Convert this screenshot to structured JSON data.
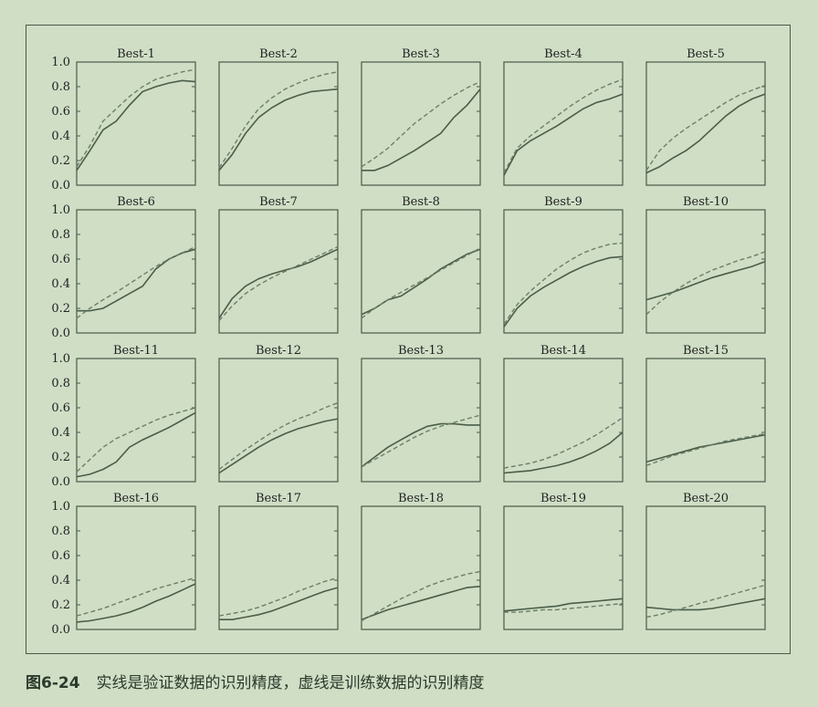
{
  "caption": {
    "figure_number": "图6-24",
    "text": "实线是验证数据的识别精度，虚线是训练数据的识别精度"
  },
  "colors": {
    "background": "#cfdec5",
    "axis": "#4a5a48",
    "solid_line": "#4b5d49",
    "dashed_line": "#6c7f68"
  },
  "chart_data": [
    {
      "type": "line",
      "title": "Best-1",
      "ylim": [
        0,
        1
      ],
      "yticks": [
        "0.0",
        "0.2",
        "0.4",
        "0.6",
        "0.8",
        "1.0"
      ],
      "series": [
        {
          "style": "solid",
          "values": [
            0.12,
            0.28,
            0.45,
            0.52,
            0.65,
            0.76,
            0.8,
            0.83,
            0.85,
            0.84
          ]
        },
        {
          "style": "dashed",
          "values": [
            0.15,
            0.32,
            0.52,
            0.62,
            0.72,
            0.8,
            0.86,
            0.89,
            0.92,
            0.94
          ]
        }
      ]
    },
    {
      "type": "line",
      "title": "Best-2",
      "ylim": [
        0,
        1
      ],
      "series": [
        {
          "style": "solid",
          "values": [
            0.12,
            0.25,
            0.42,
            0.55,
            0.63,
            0.69,
            0.73,
            0.76,
            0.77,
            0.78
          ]
        },
        {
          "style": "dashed",
          "values": [
            0.14,
            0.3,
            0.48,
            0.62,
            0.71,
            0.78,
            0.83,
            0.87,
            0.9,
            0.92
          ]
        }
      ]
    },
    {
      "type": "line",
      "title": "Best-3",
      "ylim": [
        0,
        1
      ],
      "series": [
        {
          "style": "solid",
          "values": [
            0.12,
            0.12,
            0.16,
            0.22,
            0.28,
            0.35,
            0.42,
            0.55,
            0.65,
            0.78
          ]
        },
        {
          "style": "dashed",
          "values": [
            0.15,
            0.22,
            0.3,
            0.4,
            0.5,
            0.58,
            0.66,
            0.73,
            0.79,
            0.84
          ]
        }
      ]
    },
    {
      "type": "line",
      "title": "Best-4",
      "ylim": [
        0,
        1
      ],
      "series": [
        {
          "style": "solid",
          "values": [
            0.08,
            0.28,
            0.36,
            0.42,
            0.48,
            0.55,
            0.62,
            0.67,
            0.7,
            0.74
          ]
        },
        {
          "style": "dashed",
          "values": [
            0.1,
            0.3,
            0.4,
            0.48,
            0.56,
            0.64,
            0.71,
            0.77,
            0.82,
            0.86
          ]
        }
      ]
    },
    {
      "type": "line",
      "title": "Best-5",
      "ylim": [
        0,
        1
      ],
      "series": [
        {
          "style": "solid",
          "values": [
            0.1,
            0.15,
            0.22,
            0.28,
            0.36,
            0.46,
            0.56,
            0.64,
            0.7,
            0.74
          ]
        },
        {
          "style": "dashed",
          "values": [
            0.12,
            0.28,
            0.38,
            0.46,
            0.53,
            0.6,
            0.67,
            0.73,
            0.77,
            0.81
          ]
        }
      ]
    },
    {
      "type": "line",
      "title": "Best-6",
      "ylim": [
        0,
        1
      ],
      "yticks": [
        "0.0",
        "0.2",
        "0.4",
        "0.6",
        "0.8",
        "1.0"
      ],
      "series": [
        {
          "style": "solid",
          "values": [
            0.18,
            0.18,
            0.2,
            0.26,
            0.32,
            0.38,
            0.52,
            0.6,
            0.65,
            0.68
          ]
        },
        {
          "style": "dashed",
          "values": [
            0.12,
            0.2,
            0.27,
            0.33,
            0.4,
            0.47,
            0.54,
            0.6,
            0.65,
            0.7
          ]
        }
      ]
    },
    {
      "type": "line",
      "title": "Best-7",
      "ylim": [
        0,
        1
      ],
      "series": [
        {
          "style": "solid",
          "values": [
            0.12,
            0.28,
            0.38,
            0.44,
            0.48,
            0.51,
            0.54,
            0.58,
            0.63,
            0.68
          ]
        },
        {
          "style": "dashed",
          "values": [
            0.1,
            0.22,
            0.32,
            0.39,
            0.45,
            0.5,
            0.55,
            0.6,
            0.65,
            0.7
          ]
        }
      ]
    },
    {
      "type": "line",
      "title": "Best-8",
      "ylim": [
        0,
        1
      ],
      "series": [
        {
          "style": "solid",
          "values": [
            0.15,
            0.2,
            0.27,
            0.3,
            0.37,
            0.44,
            0.52,
            0.58,
            0.64,
            0.68
          ]
        },
        {
          "style": "dashed",
          "values": [
            0.12,
            0.2,
            0.27,
            0.33,
            0.39,
            0.45,
            0.51,
            0.57,
            0.63,
            0.69
          ]
        }
      ]
    },
    {
      "type": "line",
      "title": "Best-9",
      "ylim": [
        0,
        1
      ],
      "series": [
        {
          "style": "solid",
          "values": [
            0.05,
            0.2,
            0.3,
            0.37,
            0.43,
            0.49,
            0.54,
            0.58,
            0.61,
            0.62
          ]
        },
        {
          "style": "dashed",
          "values": [
            0.07,
            0.23,
            0.34,
            0.43,
            0.52,
            0.59,
            0.65,
            0.69,
            0.72,
            0.73
          ]
        }
      ]
    },
    {
      "type": "line",
      "title": "Best-10",
      "ylim": [
        0,
        1
      ],
      "series": [
        {
          "style": "solid",
          "values": [
            0.27,
            0.3,
            0.33,
            0.37,
            0.41,
            0.45,
            0.48,
            0.51,
            0.54,
            0.58
          ]
        },
        {
          "style": "dashed",
          "values": [
            0.15,
            0.25,
            0.33,
            0.4,
            0.46,
            0.51,
            0.55,
            0.59,
            0.62,
            0.66
          ]
        }
      ]
    },
    {
      "type": "line",
      "title": "Best-11",
      "ylim": [
        0,
        1
      ],
      "yticks": [
        "0.0",
        "0.2",
        "0.4",
        "0.6",
        "0.8",
        "1.0"
      ],
      "series": [
        {
          "style": "solid",
          "values": [
            0.04,
            0.06,
            0.1,
            0.16,
            0.28,
            0.34,
            0.39,
            0.44,
            0.5,
            0.56
          ]
        },
        {
          "style": "dashed",
          "values": [
            0.08,
            0.18,
            0.28,
            0.35,
            0.4,
            0.45,
            0.5,
            0.54,
            0.57,
            0.6
          ]
        }
      ]
    },
    {
      "type": "line",
      "title": "Best-12",
      "ylim": [
        0,
        1
      ],
      "series": [
        {
          "style": "solid",
          "values": [
            0.07,
            0.14,
            0.21,
            0.28,
            0.34,
            0.39,
            0.43,
            0.46,
            0.49,
            0.51
          ]
        },
        {
          "style": "dashed",
          "values": [
            0.1,
            0.18,
            0.26,
            0.33,
            0.4,
            0.46,
            0.51,
            0.55,
            0.6,
            0.64
          ]
        }
      ]
    },
    {
      "type": "line",
      "title": "Best-13",
      "ylim": [
        0,
        1
      ],
      "series": [
        {
          "style": "solid",
          "values": [
            0.12,
            0.2,
            0.28,
            0.34,
            0.4,
            0.45,
            0.47,
            0.47,
            0.46,
            0.46
          ]
        },
        {
          "style": "dashed",
          "values": [
            0.12,
            0.18,
            0.24,
            0.3,
            0.36,
            0.41,
            0.45,
            0.48,
            0.51,
            0.54
          ]
        }
      ]
    },
    {
      "type": "line",
      "title": "Best-14",
      "ylim": [
        0,
        1
      ],
      "series": [
        {
          "style": "solid",
          "values": [
            0.07,
            0.08,
            0.09,
            0.11,
            0.13,
            0.16,
            0.2,
            0.25,
            0.31,
            0.4
          ]
        },
        {
          "style": "dashed",
          "values": [
            0.11,
            0.13,
            0.15,
            0.18,
            0.22,
            0.27,
            0.32,
            0.38,
            0.45,
            0.52
          ]
        }
      ]
    },
    {
      "type": "line",
      "title": "Best-15",
      "ylim": [
        0,
        1
      ],
      "series": [
        {
          "style": "solid",
          "values": [
            0.16,
            0.19,
            0.22,
            0.25,
            0.28,
            0.3,
            0.32,
            0.34,
            0.36,
            0.38
          ]
        },
        {
          "style": "dashed",
          "values": [
            0.13,
            0.17,
            0.21,
            0.24,
            0.27,
            0.3,
            0.33,
            0.35,
            0.37,
            0.39
          ]
        }
      ]
    },
    {
      "type": "line",
      "title": "Best-16",
      "ylim": [
        0,
        1
      ],
      "yticks": [
        "0.0",
        "0.2",
        "0.4",
        "0.6",
        "0.8",
        "1.0"
      ],
      "series": [
        {
          "style": "solid",
          "values": [
            0.06,
            0.07,
            0.09,
            0.11,
            0.14,
            0.18,
            0.23,
            0.27,
            0.32,
            0.37
          ]
        },
        {
          "style": "dashed",
          "values": [
            0.11,
            0.14,
            0.17,
            0.21,
            0.25,
            0.29,
            0.33,
            0.36,
            0.39,
            0.42
          ]
        }
      ]
    },
    {
      "type": "line",
      "title": "Best-17",
      "ylim": [
        0,
        1
      ],
      "series": [
        {
          "style": "solid",
          "values": [
            0.08,
            0.08,
            0.1,
            0.12,
            0.15,
            0.19,
            0.23,
            0.27,
            0.31,
            0.34
          ]
        },
        {
          "style": "dashed",
          "values": [
            0.11,
            0.13,
            0.15,
            0.18,
            0.22,
            0.26,
            0.31,
            0.35,
            0.39,
            0.42
          ]
        }
      ]
    },
    {
      "type": "line",
      "title": "Best-18",
      "ylim": [
        0,
        1
      ],
      "series": [
        {
          "style": "solid",
          "values": [
            0.08,
            0.12,
            0.16,
            0.19,
            0.22,
            0.25,
            0.28,
            0.31,
            0.34,
            0.35
          ]
        },
        {
          "style": "dashed",
          "values": [
            0.07,
            0.13,
            0.19,
            0.25,
            0.3,
            0.35,
            0.39,
            0.42,
            0.45,
            0.47
          ]
        }
      ]
    },
    {
      "type": "line",
      "title": "Best-19",
      "ylim": [
        0,
        1
      ],
      "series": [
        {
          "style": "solid",
          "values": [
            0.15,
            0.16,
            0.17,
            0.18,
            0.19,
            0.21,
            0.22,
            0.23,
            0.24,
            0.25
          ]
        },
        {
          "style": "dashed",
          "values": [
            0.14,
            0.14,
            0.15,
            0.16,
            0.16,
            0.17,
            0.18,
            0.19,
            0.2,
            0.21
          ]
        }
      ]
    },
    {
      "type": "line",
      "title": "Best-20",
      "ylim": [
        0,
        1
      ],
      "series": [
        {
          "style": "solid",
          "values": [
            0.18,
            0.17,
            0.16,
            0.16,
            0.16,
            0.17,
            0.19,
            0.21,
            0.23,
            0.25
          ]
        },
        {
          "style": "dashed",
          "values": [
            0.1,
            0.12,
            0.15,
            0.18,
            0.21,
            0.24,
            0.27,
            0.3,
            0.33,
            0.36
          ]
        }
      ]
    }
  ]
}
